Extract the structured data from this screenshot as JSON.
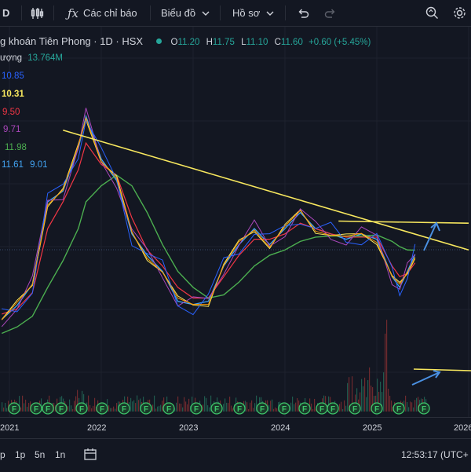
{
  "toolbar": {
    "symbol_fragment": "D",
    "indicators_label": "Các chỉ báo",
    "chart_type_label": "Biểu đồ",
    "profile_label": "Hồ sơ"
  },
  "legend": {
    "title": "g khoán Tiên Phong · 1D · HSX",
    "o_label": "O",
    "o_value": "11.20",
    "h_label": "H",
    "h_value": "11.75",
    "l_label": "L",
    "l_value": "11.10",
    "c_label": "C",
    "c_value": "11.60",
    "change": "+0.60 (+5.45%)",
    "volume_label": "ượng",
    "volume_value": "13.764M",
    "ma_values": [
      {
        "value": "10.85",
        "color": "#2962ff"
      },
      {
        "value": "10.31",
        "color": "#f7e75e"
      },
      {
        "value": "9.50",
        "color": "#f23645"
      },
      {
        "value": "9.71",
        "color": "#ab47bc"
      },
      {
        "value": "11.98",
        "color": "#4caf50"
      },
      {
        "value": "11.61",
        "color": "#42a5f5"
      },
      {
        "value": "9.01",
        "color": "#42a5f5"
      }
    ]
  },
  "x_axis": [
    "2021",
    "2022",
    "2023",
    "2024",
    "2025",
    "2026"
  ],
  "bottom_bar": {
    "ranges": [
      "p",
      "1p",
      "5n",
      "1n"
    ],
    "time": "12:53:17 (UTC+"
  },
  "chart_data": {
    "type": "line",
    "x": [
      "2020-12",
      "2021-02",
      "2021-04",
      "2021-06",
      "2021-08",
      "2021-10",
      "2021-11",
      "2022-01",
      "2022-03",
      "2022-05",
      "2022-07",
      "2022-09",
      "2022-11",
      "2023-01",
      "2023-03",
      "2023-05",
      "2023-07",
      "2023-09",
      "2023-11",
      "2024-01",
      "2024-03",
      "2024-05",
      "2024-07",
      "2024-09",
      "2024-11",
      "2025-01",
      "2025-03",
      "2025-04",
      "2025-05",
      "2025-06"
    ],
    "series": [
      {
        "values": [
          5.5,
          6.8,
          8.8,
          16.5,
          17.5,
          21.5,
          24.5,
          20.5,
          18.5,
          13.5,
          11.5,
          10.0,
          7.2,
          6.9,
          7.2,
          10.5,
          12.5,
          14.0,
          12.5,
          14.0,
          15.5,
          14.0,
          13.5,
          13.0,
          13.5,
          13.0,
          9.5,
          8.5,
          10.0,
          11.6
        ]
      },
      {
        "values": [
          6.0,
          6.5,
          8.0,
          14.0,
          16.5,
          19.5,
          22.0,
          20.0,
          19.0,
          15.0,
          12.0,
          10.5,
          8.5,
          7.5,
          7.5,
          9.5,
          11.5,
          13.0,
          13.0,
          13.5,
          14.5,
          14.0,
          13.5,
          13.2,
          13.2,
          13.2,
          10.5,
          9.5,
          9.8,
          10.8
        ]
      },
      {
        "values": [
          4.2,
          4.8,
          5.8,
          8.5,
          11.0,
          14.0,
          16.5,
          18.0,
          19.0,
          18.0,
          15.5,
          12.5,
          10.0,
          8.5,
          7.5,
          7.8,
          9.0,
          10.5,
          11.5,
          12.0,
          12.8,
          13.2,
          13.3,
          13.3,
          13.3,
          13.4,
          12.8,
          12.3,
          12.0,
          11.98
        ]
      }
    ],
    "ylim": [
      3.5,
      27
    ],
    "trendlines": [
      {
        "from": [
          "2021-08",
          23.2
        ],
        "to": [
          "2026-01",
          12.0
        ]
      },
      {
        "from": [
          "2024-08",
          14.7
        ],
        "to": [
          "2026-01",
          14.5
        ]
      }
    ]
  }
}
